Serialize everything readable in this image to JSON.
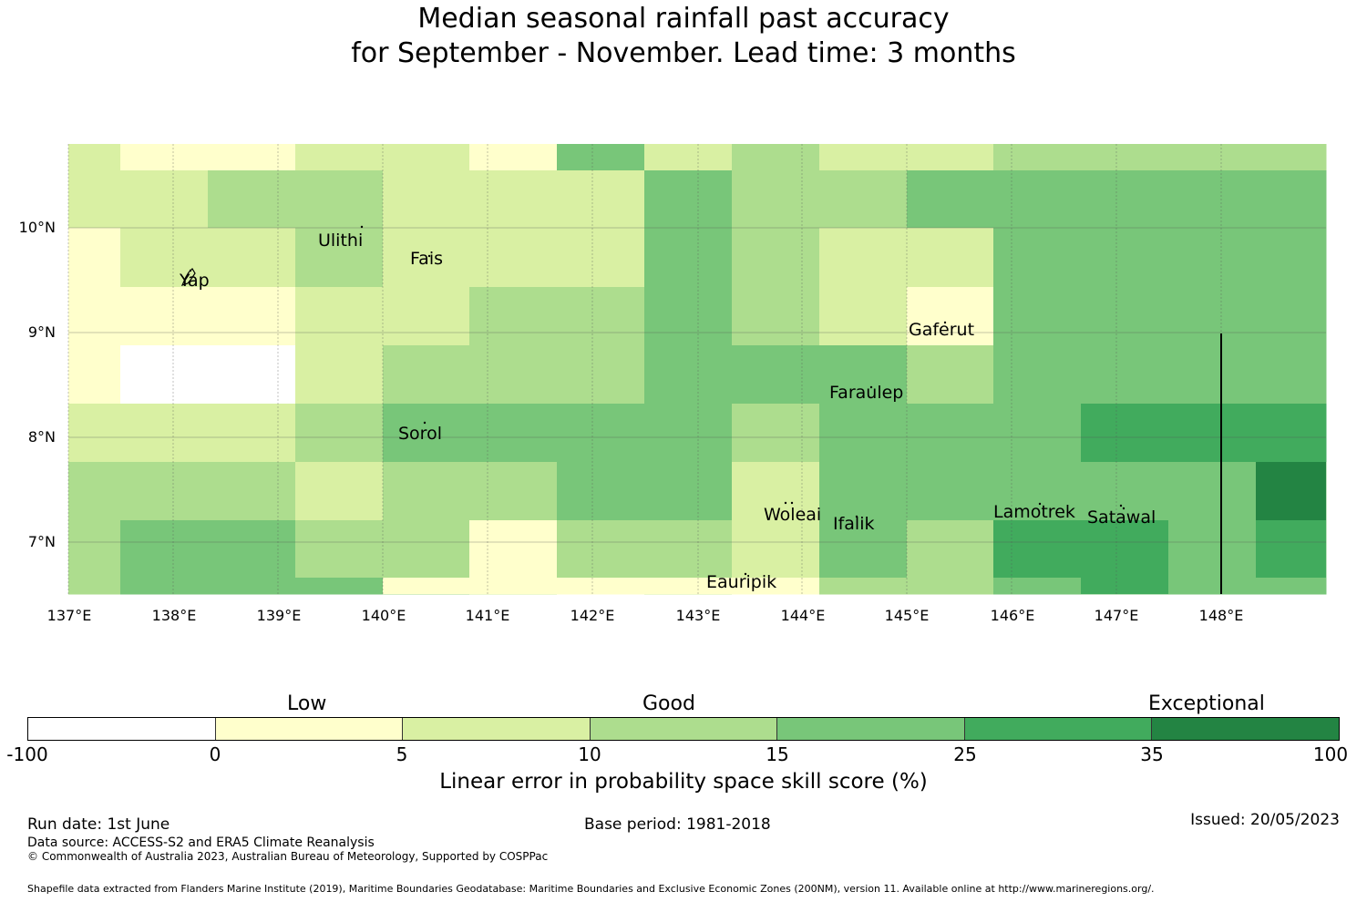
{
  "title": {
    "line1": "Median seasonal rainfall past accuracy",
    "line2": "for September - November. Lead time: 3 months"
  },
  "map": {
    "lat_labels": [
      "10°N",
      "9°N",
      "8°N",
      "7°N"
    ],
    "lon_labels": [
      "137°E",
      "138°E",
      "139°E",
      "140°E",
      "141°E",
      "142°E",
      "143°E",
      "144°E",
      "145°E",
      "146°E",
      "147°E",
      "148°E"
    ],
    "places": [
      "Ulithi",
      "Yap",
      "Fais",
      "Gaferut",
      "Faraulep",
      "Sorol",
      "Woleai",
      "Ifalik",
      "Lamotrek",
      "Satawal",
      "Eauripik"
    ],
    "category_colors": [
      "#ffffff",
      "#ffffcc",
      "#d9f0a3",
      "#addd8e",
      "#78c679",
      "#41ab5d",
      "#238443"
    ],
    "grid": [
      [
        2,
        1,
        1,
        2,
        2,
        1,
        4,
        2,
        3,
        2,
        2,
        3,
        3
      ],
      [
        2,
        2,
        3,
        3,
        2,
        2,
        2,
        4,
        3,
        3,
        4,
        4,
        4
      ],
      [
        1,
        2,
        2,
        3,
        2,
        2,
        2,
        4,
        3,
        2,
        2,
        4,
        4
      ],
      [
        1,
        1,
        1,
        2,
        2,
        3,
        3,
        4,
        3,
        2,
        1,
        4,
        4
      ],
      [
        1,
        0,
        0,
        2,
        3,
        3,
        3,
        4,
        4,
        4,
        3,
        4,
        4
      ],
      [
        2,
        2,
        2,
        3,
        4,
        4,
        4,
        4,
        3,
        4,
        4,
        4,
        5
      ],
      [
        3,
        3,
        3,
        2,
        3,
        3,
        4,
        4,
        2,
        4,
        4,
        4,
        4
      ],
      [
        3,
        4,
        4,
        3,
        3,
        1,
        3,
        3,
        2,
        4,
        3,
        5,
        4
      ],
      [
        3,
        4,
        4,
        4,
        3,
        2,
        1,
        2,
        1,
        3,
        3,
        4,
        4
      ]
    ]
  },
  "colorbar": {
    "ticks": [
      "-100",
      "0",
      "5",
      "10",
      "15",
      "25",
      "35",
      "100"
    ],
    "categories": [
      "Low",
      "Good",
      "Exceptional"
    ],
    "label": "Linear error in probability space skill score (%)"
  },
  "footer": {
    "run_date": "Run date: 1st June",
    "base_period": "Base period: 1981-2018",
    "issued": "Issued: 20/05/2023",
    "data_source": "Data source: ACCESS-S2 and ERA5 Climate Reanalysis",
    "copyright": "© Commonwealth of Australia 2023, Australian Bureau of Meteorology, Supported by COSPPac",
    "shapefile": "Shapefile data extracted from Flanders Marine Institute (2019), Maritime Boundaries Geodatabase: Maritime Boundaries and Exclusive Economic Zones (200NM), version 11. Available online at http://www.marineregions.org/."
  }
}
